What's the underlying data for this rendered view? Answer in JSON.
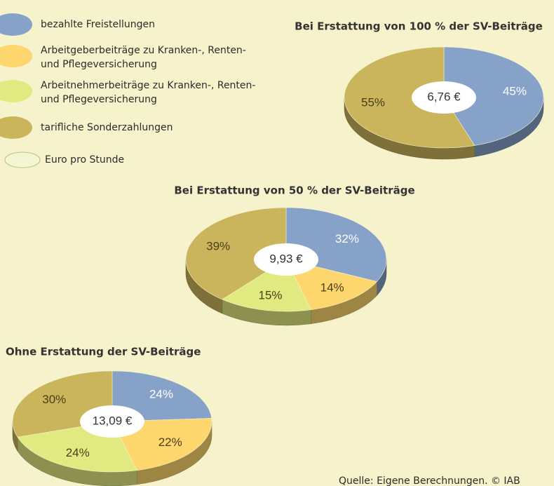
{
  "legend": {
    "categories": [
      "bezahlte Freistellungen",
      "Arbeitgeberbeiträge zu Kranken-, Renten- und Pflegeversicherung",
      "Arbeitnehmerbeiträge zu Kranken-, Renten- und Pflegeversicherung",
      "tarifliche Sonderzahlungen"
    ],
    "colors": [
      "#86a2c9",
      "#fdd66e",
      "#e1ea80",
      "#cbb55c"
    ],
    "center_note": "Euro pro Stunde"
  },
  "source": "Quelle: Eigene Berechnungen. © IAB",
  "chart_data": [
    {
      "type": "pie",
      "title": "Bei Erstattung von 100 % der SV-Beiträge",
      "center_label": "6,76 €",
      "values": [
        45,
        0,
        0,
        55
      ],
      "value_labels": [
        "45%",
        null,
        null,
        "55%"
      ]
    },
    {
      "type": "pie",
      "title": "Bei Erstattung von 50 % der SV-Beiträge",
      "center_label": "9,93 €",
      "values": [
        32,
        14,
        15,
        39
      ],
      "value_labels": [
        "32%",
        "14%",
        "15%",
        "39%"
      ]
    },
    {
      "type": "pie",
      "title": "Ohne Erstattung der SV-Beiträge",
      "center_label": "13,09 €",
      "values": [
        24,
        22,
        24,
        30
      ],
      "value_labels": [
        "24%",
        "22%",
        "24%",
        "30%"
      ]
    }
  ]
}
